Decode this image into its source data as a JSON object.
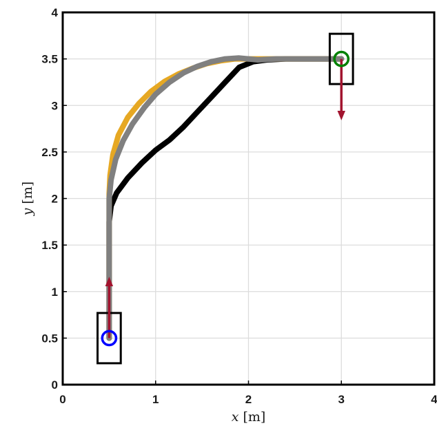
{
  "chart_data": {
    "type": "line",
    "xlabel_var": "x",
    "xlabel_unit": "[m]",
    "ylabel_var": "y",
    "ylabel_unit": "[m]",
    "xlim": [
      0,
      4
    ],
    "ylim": [
      0,
      4
    ],
    "xticks": [
      0,
      1,
      2,
      3,
      4
    ],
    "yticks": [
      0,
      0.5,
      1,
      1.5,
      2,
      2.5,
      3,
      3.5,
      4
    ],
    "xtick_labels": [
      "0",
      "1",
      "2",
      "3",
      "4"
    ],
    "ytick_labels": [
      "0",
      "0.5",
      "1",
      "1.5",
      "2",
      "2.5",
      "3",
      "3.5",
      "4"
    ],
    "grid": true,
    "series": [
      {
        "color": "#000000",
        "x": [
          0.5,
          0.5,
          0.52,
          0.58,
          0.7,
          0.85,
          1.0,
          1.15,
          1.3,
          1.45,
          1.6,
          1.75,
          1.9,
          2.05,
          2.2,
          2.4,
          2.7,
          3.0
        ],
        "y": [
          0.5,
          1.75,
          1.92,
          2.06,
          2.22,
          2.38,
          2.52,
          2.63,
          2.77,
          2.93,
          3.09,
          3.25,
          3.41,
          3.47,
          3.49,
          3.5,
          3.5,
          3.5
        ]
      },
      {
        "color": "#E6A823",
        "x": [
          0.5,
          0.5,
          0.51,
          0.54,
          0.6,
          0.7,
          0.82,
          0.95,
          1.1,
          1.25,
          1.4,
          1.55,
          1.7,
          1.85,
          2.0,
          2.2,
          2.5,
          2.8,
          3.0
        ],
        "y": [
          0.5,
          2.05,
          2.25,
          2.47,
          2.68,
          2.87,
          3.02,
          3.15,
          3.26,
          3.34,
          3.4,
          3.45,
          3.48,
          3.5,
          3.5,
          3.5,
          3.5,
          3.5,
          3.5
        ]
      },
      {
        "color": "#808080",
        "x": [
          0.5,
          0.5,
          0.52,
          0.57,
          0.65,
          0.75,
          0.88,
          1.0,
          1.15,
          1.3,
          1.45,
          1.6,
          1.75,
          1.9,
          2.0,
          2.1,
          2.3,
          2.6,
          3.0
        ],
        "y": [
          0.5,
          2.0,
          2.2,
          2.42,
          2.62,
          2.8,
          2.98,
          3.12,
          3.25,
          3.35,
          3.42,
          3.47,
          3.5,
          3.51,
          3.5,
          3.49,
          3.5,
          3.5,
          3.5
        ]
      }
    ],
    "markers": [
      {
        "kind": "rectangle",
        "x": 0.5,
        "y": 0.5,
        "width": 0.25,
        "height": 0.54,
        "color": "#000000"
      },
      {
        "kind": "rectangle",
        "x": 3.0,
        "y": 3.5,
        "width": 0.25,
        "height": 0.54,
        "color": "#000000"
      },
      {
        "kind": "circle",
        "x": 0.5,
        "y": 0.5,
        "radius": 0.075,
        "color": "#0000FF"
      },
      {
        "kind": "circle",
        "x": 3.0,
        "y": 3.5,
        "radius": 0.075,
        "color": "#008000"
      }
    ],
    "arrows": [
      {
        "x": 0.5,
        "y": 0.5,
        "dx": 0.0,
        "dy": 0.65,
        "color": "#A2142F"
      },
      {
        "x": 3.0,
        "y": 3.5,
        "dx": 0.0,
        "dy": -0.65,
        "color": "#A2142F"
      }
    ]
  }
}
